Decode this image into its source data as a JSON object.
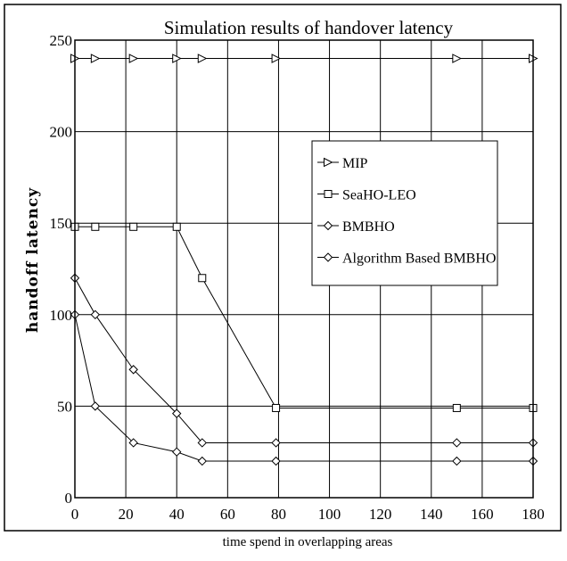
{
  "chart_data": {
    "type": "line",
    "title": "Simulation results of handover latency",
    "xlabel": "time spend in overlapping areas",
    "ylabel": "handoff latency",
    "xlim": [
      0,
      180
    ],
    "ylim": [
      0,
      250
    ],
    "x_ticks": [
      0,
      20,
      40,
      60,
      80,
      100,
      120,
      140,
      160,
      180
    ],
    "y_ticks": [
      0,
      50,
      100,
      150,
      200,
      250
    ],
    "grid": true,
    "legend_position": "upper-right",
    "series": [
      {
        "name": "MIP",
        "marker": "triangle-right",
        "x": [
          0,
          8,
          23,
          40,
          50,
          79,
          150,
          180
        ],
        "y": [
          240,
          240,
          240,
          240,
          240,
          240,
          240,
          240
        ]
      },
      {
        "name": "SeaHO-LEO",
        "marker": "square",
        "x": [
          0,
          8,
          23,
          40,
          50,
          79,
          150,
          180
        ],
        "y": [
          148,
          148,
          148,
          148,
          120,
          49,
          49,
          49
        ]
      },
      {
        "name": "BMBHO",
        "marker": "diamond",
        "x": [
          0,
          8,
          23,
          40,
          50,
          79,
          150,
          180
        ],
        "y": [
          120,
          100,
          70,
          46,
          30,
          30,
          30,
          30
        ]
      },
      {
        "name": "Algorithm Based BMBHO",
        "marker": "diamond",
        "x": [
          0,
          8,
          23,
          40,
          50,
          79,
          150,
          180
        ],
        "y": [
          100,
          50,
          30,
          25,
          20,
          20,
          20,
          20
        ]
      }
    ]
  }
}
